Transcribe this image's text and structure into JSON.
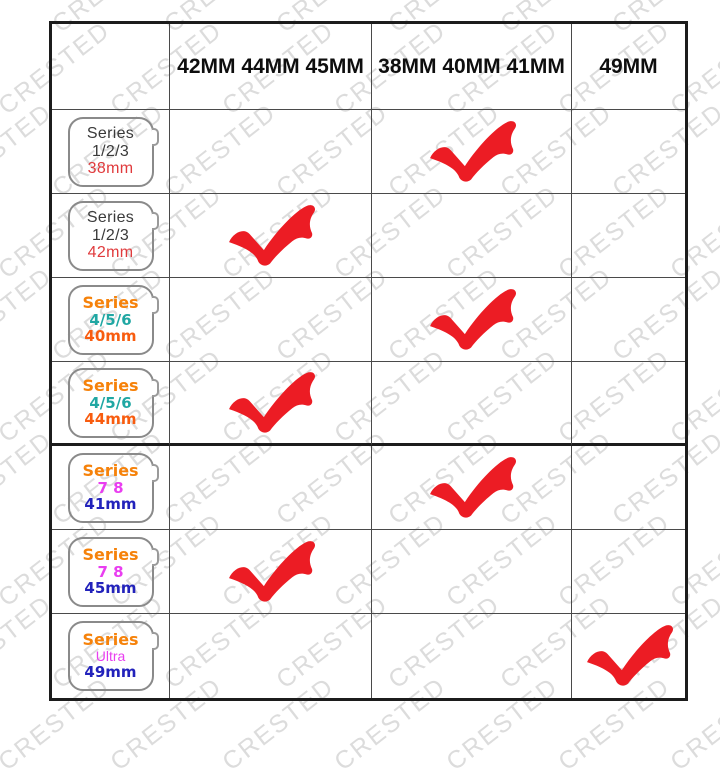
{
  "watermark": {
    "text": "CRESTED"
  },
  "colors": {
    "check": "#ec1c24",
    "border": "#1c1c1c",
    "grid_line": "#4a4a4a",
    "watermark": "#dcdcdc",
    "orange": "#f6820a",
    "teal": "#20a7a3",
    "orange_red": "#f85c0f",
    "magenta": "#e93ef0",
    "blue": "#2222bb",
    "red": "#e03a3c",
    "dark": "#3a3a3a"
  },
  "header": {
    "columns": [
      "",
      "42MM 44MM 45MM",
      "38MM 40MM 41MM",
      "49MM"
    ]
  },
  "rows": [
    {
      "watch": {
        "line1": {
          "text": "Series",
          "color": "#3a3a3a"
        },
        "line2": {
          "text": "1/2/3",
          "color": "#3a3a3a"
        },
        "line3": {
          "text": "38mm",
          "color": "#e03a3c"
        }
      },
      "check_col": 1
    },
    {
      "watch": {
        "line1": {
          "text": "Series",
          "color": "#3a3a3a"
        },
        "line2": {
          "text": "1/2/3",
          "color": "#3a3a3a"
        },
        "line3": {
          "text": "42mm",
          "color": "#e03a3c"
        }
      },
      "check_col": 0
    },
    {
      "watch": {
        "line1": {
          "text": "Series",
          "color": "#f6820a"
        },
        "line2": {
          "text": "4/5/6",
          "color": "#20a7a3"
        },
        "line3": {
          "text": "40mm",
          "color": "#f85c0f"
        }
      },
      "check_col": 1
    },
    {
      "watch": {
        "line1": {
          "text": "Series",
          "color": "#f6820a"
        },
        "line2": {
          "text": "4/5/6",
          "color": "#20a7a3"
        },
        "line3": {
          "text": "44mm",
          "color": "#f85c0f"
        }
      },
      "check_col": 0
    },
    {
      "watch": {
        "line1": {
          "text": "Series",
          "color": "#f6820a"
        },
        "line2": {
          "text": "7 8",
          "color": "#e93ef0"
        },
        "line3": {
          "text": "41mm",
          "color": "#2222bb"
        }
      },
      "check_col": 1
    },
    {
      "watch": {
        "line1": {
          "text": "Series",
          "color": "#f6820a"
        },
        "line2": {
          "text": "7 8",
          "color": "#e93ef0"
        },
        "line3": {
          "text": "45mm",
          "color": "#2222bb"
        }
      },
      "check_col": 0
    },
    {
      "watch": {
        "line1": {
          "text": "Series",
          "color": "#f6820a"
        },
        "line2": {
          "text": "Ultra",
          "color": "#e93ef0"
        },
        "line3": {
          "text": "49mm",
          "color": "#2222bb"
        }
      },
      "check_col": 2
    }
  ]
}
